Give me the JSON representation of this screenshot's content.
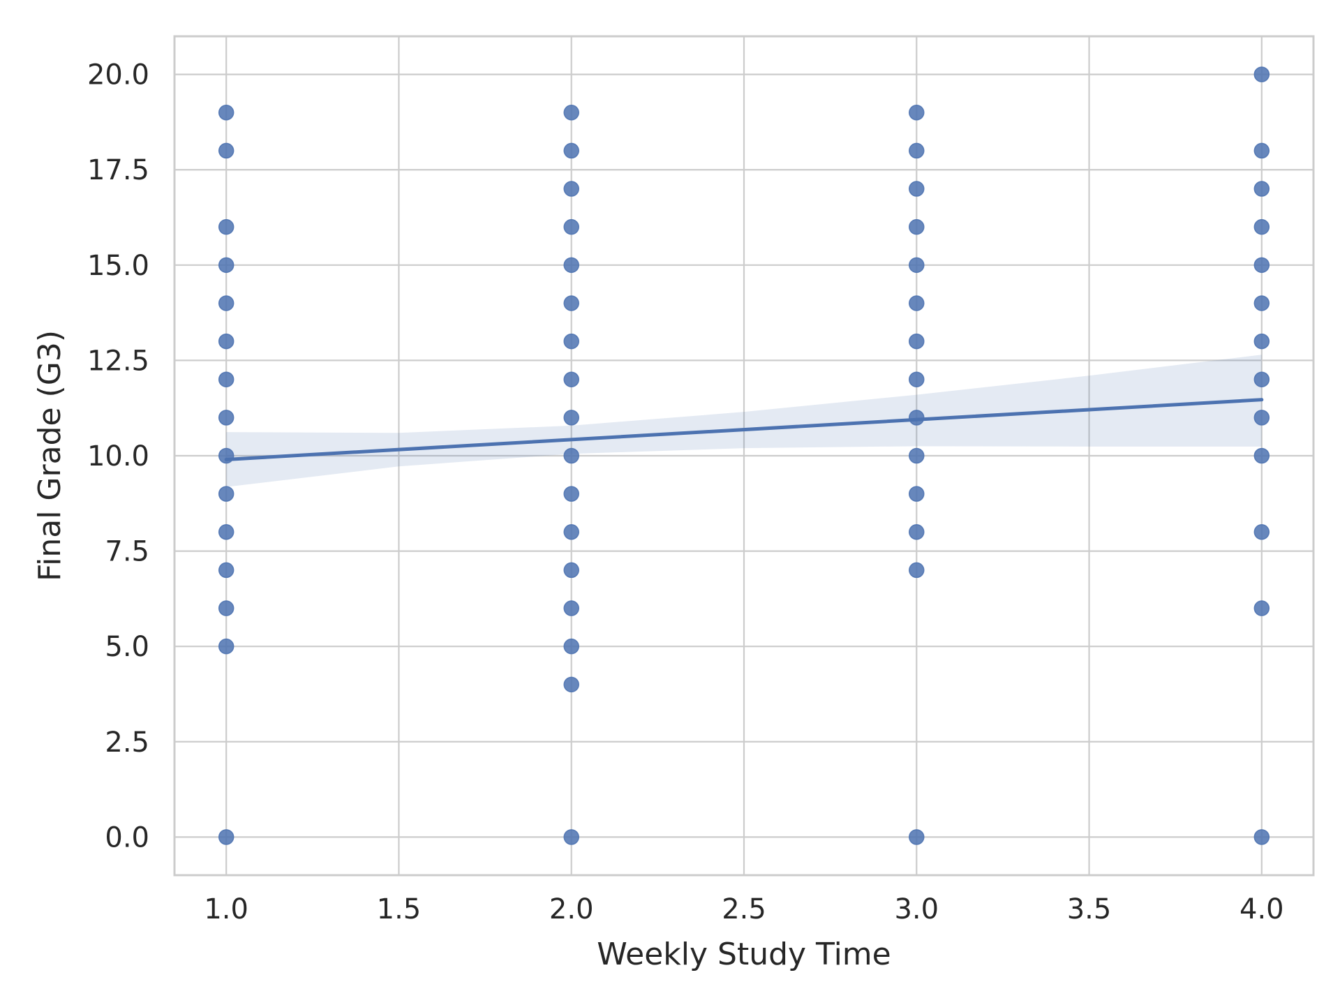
{
  "chart_data": {
    "type": "scatter",
    "xlabel": "Weekly Study Time",
    "ylabel": "Final Grade (G3)",
    "xlim": [
      0.85,
      4.15
    ],
    "ylim": [
      -1.0,
      21.0
    ],
    "x_ticks": [
      1.0,
      1.5,
      2.0,
      2.5,
      3.0,
      3.5,
      4.0
    ],
    "x_tick_labels": [
      "1.0",
      "1.5",
      "2.0",
      "2.5",
      "3.0",
      "3.5",
      "4.0"
    ],
    "y_ticks": [
      0.0,
      2.5,
      5.0,
      7.5,
      10.0,
      12.5,
      15.0,
      17.5,
      20.0
    ],
    "y_tick_labels": [
      "0.0",
      "2.5",
      "5.0",
      "7.5",
      "10.0",
      "12.5",
      "15.0",
      "17.5",
      "20.0"
    ],
    "grid": true,
    "colors": {
      "points": "#4c72b0",
      "line": "#4c72b0",
      "band": "#4c72b0",
      "grid": "#cccccc",
      "text": "#262626"
    },
    "points": [
      {
        "x": 1,
        "y": 0
      },
      {
        "x": 1,
        "y": 5
      },
      {
        "x": 1,
        "y": 6
      },
      {
        "x": 1,
        "y": 7
      },
      {
        "x": 1,
        "y": 8
      },
      {
        "x": 1,
        "y": 9
      },
      {
        "x": 1,
        "y": 10
      },
      {
        "x": 1,
        "y": 11
      },
      {
        "x": 1,
        "y": 12
      },
      {
        "x": 1,
        "y": 13
      },
      {
        "x": 1,
        "y": 14
      },
      {
        "x": 1,
        "y": 15
      },
      {
        "x": 1,
        "y": 16
      },
      {
        "x": 1,
        "y": 18
      },
      {
        "x": 1,
        "y": 19
      },
      {
        "x": 2,
        "y": 0
      },
      {
        "x": 2,
        "y": 4
      },
      {
        "x": 2,
        "y": 5
      },
      {
        "x": 2,
        "y": 6
      },
      {
        "x": 2,
        "y": 7
      },
      {
        "x": 2,
        "y": 8
      },
      {
        "x": 2,
        "y": 9
      },
      {
        "x": 2,
        "y": 10
      },
      {
        "x": 2,
        "y": 11
      },
      {
        "x": 2,
        "y": 12
      },
      {
        "x": 2,
        "y": 13
      },
      {
        "x": 2,
        "y": 14
      },
      {
        "x": 2,
        "y": 15
      },
      {
        "x": 2,
        "y": 16
      },
      {
        "x": 2,
        "y": 17
      },
      {
        "x": 2,
        "y": 18
      },
      {
        "x": 2,
        "y": 19
      },
      {
        "x": 3,
        "y": 0
      },
      {
        "x": 3,
        "y": 7
      },
      {
        "x": 3,
        "y": 8
      },
      {
        "x": 3,
        "y": 9
      },
      {
        "x": 3,
        "y": 10
      },
      {
        "x": 3,
        "y": 11
      },
      {
        "x": 3,
        "y": 12
      },
      {
        "x": 3,
        "y": 13
      },
      {
        "x": 3,
        "y": 14
      },
      {
        "x": 3,
        "y": 15
      },
      {
        "x": 3,
        "y": 16
      },
      {
        "x": 3,
        "y": 17
      },
      {
        "x": 3,
        "y": 18
      },
      {
        "x": 3,
        "y": 19
      },
      {
        "x": 4,
        "y": 0
      },
      {
        "x": 4,
        "y": 6
      },
      {
        "x": 4,
        "y": 8
      },
      {
        "x": 4,
        "y": 10
      },
      {
        "x": 4,
        "y": 11
      },
      {
        "x": 4,
        "y": 12
      },
      {
        "x": 4,
        "y": 13
      },
      {
        "x": 4,
        "y": 14
      },
      {
        "x": 4,
        "y": 15
      },
      {
        "x": 4,
        "y": 16
      },
      {
        "x": 4,
        "y": 17
      },
      {
        "x": 4,
        "y": 18
      },
      {
        "x": 4,
        "y": 20
      }
    ],
    "regression": {
      "x": [
        1.0,
        4.0
      ],
      "y": [
        9.9,
        11.47
      ]
    },
    "confidence_band": {
      "x": [
        1.0,
        1.5,
        2.0,
        2.5,
        3.0,
        3.5,
        4.0
      ],
      "lower": [
        9.18,
        9.72,
        10.05,
        10.2,
        10.25,
        10.24,
        10.24
      ],
      "upper": [
        10.62,
        10.6,
        10.79,
        11.15,
        11.6,
        12.1,
        12.65
      ]
    }
  }
}
